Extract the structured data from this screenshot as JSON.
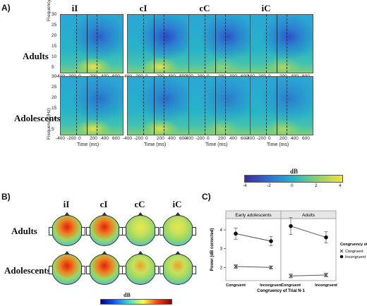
{
  "panels": {
    "a": "A)",
    "b": "B)",
    "c": "C)"
  },
  "conditions": [
    "iI",
    "cI",
    "cC",
    "iC"
  ],
  "groups": {
    "adults": "Adults",
    "adolescents": "Adolescents"
  },
  "tf_axes": {
    "ylabel": "Frequency (Hz)",
    "yticks": [
      "30",
      "25",
      "20",
      "15",
      "10",
      "5"
    ],
    "xticks": [
      "-400",
      "-200",
      "0",
      "200",
      "400",
      "600"
    ],
    "xlabel": "Time (ms)"
  },
  "colorbar_a": {
    "label": "dB",
    "ticks": [
      "-4",
      "-2",
      "0",
      "2",
      "4"
    ],
    "colors": [
      "#3c2b9a",
      "#2f6fd6",
      "#27b3c8",
      "#8fd26a",
      "#f5e23a"
    ]
  },
  "colorbar_b": {
    "label": "dB",
    "colors": [
      "#00008b",
      "#1060ff",
      "#40e0d0",
      "#ffff40",
      "#ff4010",
      "#8b0000"
    ]
  },
  "chart_data": {
    "type": "line",
    "facets": [
      "Early adolescents",
      "Adults"
    ],
    "categories": [
      "Congruent",
      "Incongruent"
    ],
    "xlabel": "Congruency of Trial N-1",
    "ylabel": "Power (dB corrected)",
    "ylim": [
      1.3,
      4.6
    ],
    "yticks": [
      2,
      3,
      4
    ],
    "legend_title": "Congruency of Trial N",
    "series": [
      {
        "name": "Congruent",
        "marker": "x",
        "values": {
          "Early adolescents": [
            2.05,
            2.0
          ],
          "Adults": [
            1.55,
            1.6
          ]
        },
        "errors": {
          "Early adolescents": [
            0.1,
            0.08
          ],
          "Adults": [
            0.1,
            0.1
          ]
        }
      },
      {
        "name": "Incongruent",
        "marker": "filled-circle",
        "values": {
          "Early adolescents": [
            3.8,
            3.4
          ],
          "Adults": [
            4.2,
            3.6
          ]
        },
        "errors": {
          "Early adolescents": [
            0.3,
            0.25
          ],
          "Adults": [
            0.45,
            0.3
          ]
        }
      }
    ]
  }
}
